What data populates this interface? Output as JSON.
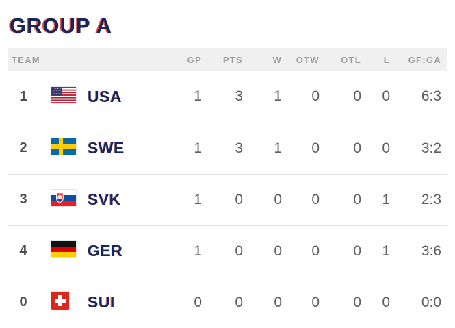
{
  "title": "GROUP A",
  "colors": {
    "title_navy": "#14265d",
    "title_red_fringe": "#e3362b",
    "header_bg": "#f0f0f0",
    "header_text": "#9d9d9d",
    "team_navy": "#13265e",
    "value_gray": "#5f5f5f",
    "row_divider": "#e2e2e2"
  },
  "table": {
    "headers": [
      "TEAM",
      "GP",
      "PTS",
      "W",
      "OTW",
      "OTL",
      "L",
      "GF:GA"
    ],
    "rows": [
      {
        "rank": "1",
        "flag": "usa",
        "team": "USA",
        "gp": "1",
        "pts": "3",
        "w": "1",
        "otw": "0",
        "otl": "0",
        "l": "0",
        "gfga": "6:3"
      },
      {
        "rank": "2",
        "flag": "swe",
        "team": "SWE",
        "gp": "1",
        "pts": "3",
        "w": "1",
        "otw": "0",
        "otl": "0",
        "l": "0",
        "gfga": "3:2"
      },
      {
        "rank": "3",
        "flag": "svk",
        "team": "SVK",
        "gp": "1",
        "pts": "0",
        "w": "0",
        "otw": "0",
        "otl": "0",
        "l": "1",
        "gfga": "2:3"
      },
      {
        "rank": "4",
        "flag": "ger",
        "team": "GER",
        "gp": "1",
        "pts": "0",
        "w": "0",
        "otw": "0",
        "otl": "0",
        "l": "1",
        "gfga": "3:6"
      },
      {
        "rank": "0",
        "flag": "sui",
        "team": "SUI",
        "gp": "0",
        "pts": "0",
        "w": "0",
        "otw": "0",
        "otl": "0",
        "l": "0",
        "gfga": "0:0"
      }
    ]
  }
}
